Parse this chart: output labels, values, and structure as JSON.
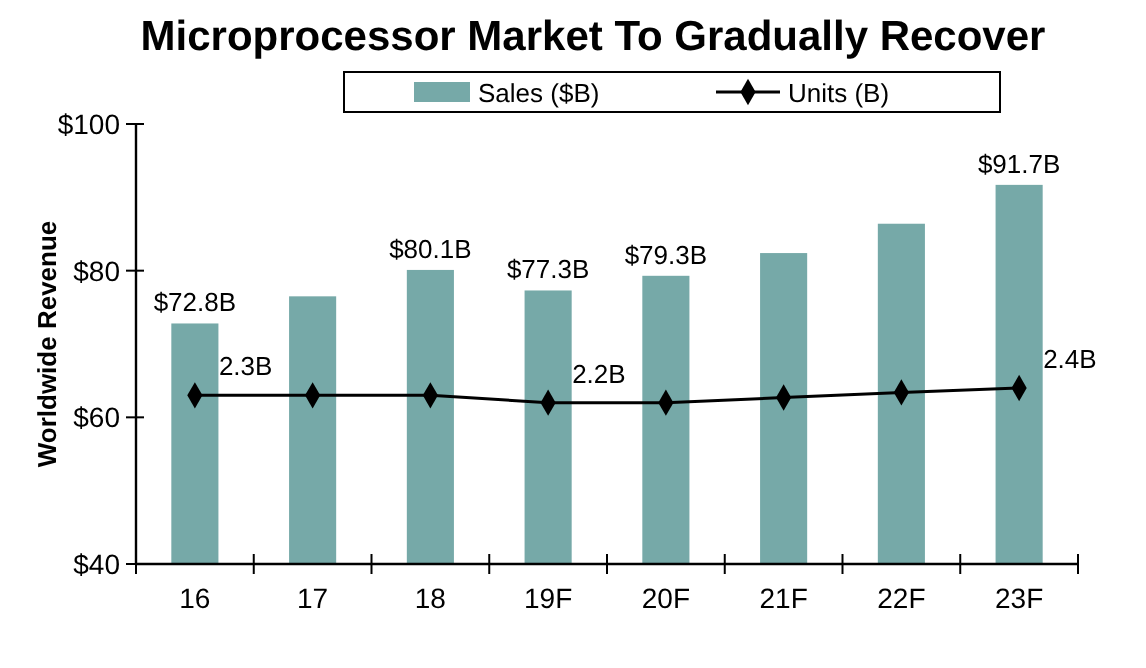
{
  "chart_data": {
    "type": "bar",
    "title": "Microprocessor Market To Gradually Recover",
    "ylabel": "Worldwide Revenue",
    "categories": [
      "16",
      "17",
      "18",
      "19F",
      "20F",
      "21F",
      "22F",
      "23F"
    ],
    "series": [
      {
        "name": "Sales ($B)",
        "color": "#76a9a8",
        "values": [
          72.8,
          76.5,
          80.1,
          77.3,
          79.3,
          82.4,
          86.4,
          91.7
        ],
        "value_labels": [
          "$72.8B",
          null,
          "$80.1B",
          "$77.3B",
          "$79.3B",
          null,
          null,
          "$91.7B"
        ]
      },
      {
        "name": "Units (B)",
        "type": "line",
        "axis": "y2",
        "color": "#000000",
        "marker": "diamond",
        "values": [
          2.3,
          2.3,
          2.3,
          2.2,
          2.2,
          2.27,
          2.34,
          2.4
        ],
        "value_labels": [
          "2.3B",
          null,
          null,
          "2.2B",
          null,
          null,
          null,
          "2.4B"
        ]
      }
    ],
    "ylim": [
      40,
      100
    ],
    "yticks": [
      {
        "value": 40,
        "label": "$40"
      },
      {
        "value": 60,
        "label": "$60"
      },
      {
        "value": 80,
        "label": "$80"
      },
      {
        "value": 100,
        "label": "$100"
      }
    ],
    "y2lim": [
      0,
      6
    ],
    "grid": false,
    "legend": "top"
  }
}
